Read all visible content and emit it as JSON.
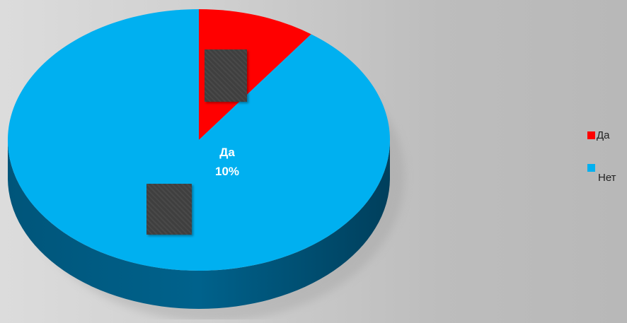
{
  "chart_data": {
    "type": "pie",
    "style": "3d",
    "title": "",
    "categories": [
      "Да",
      "Нет"
    ],
    "values": [
      10,
      90
    ],
    "colors": [
      "#ff0000",
      "#00b0f0"
    ],
    "data_labels": [
      {
        "category": "Да",
        "percent": "10%"
      }
    ],
    "legend": {
      "position": "right",
      "items": [
        {
          "label": "Да",
          "color": "#ff0000"
        },
        {
          "label": "Нет",
          "color": "#00b0f0"
        }
      ]
    }
  }
}
